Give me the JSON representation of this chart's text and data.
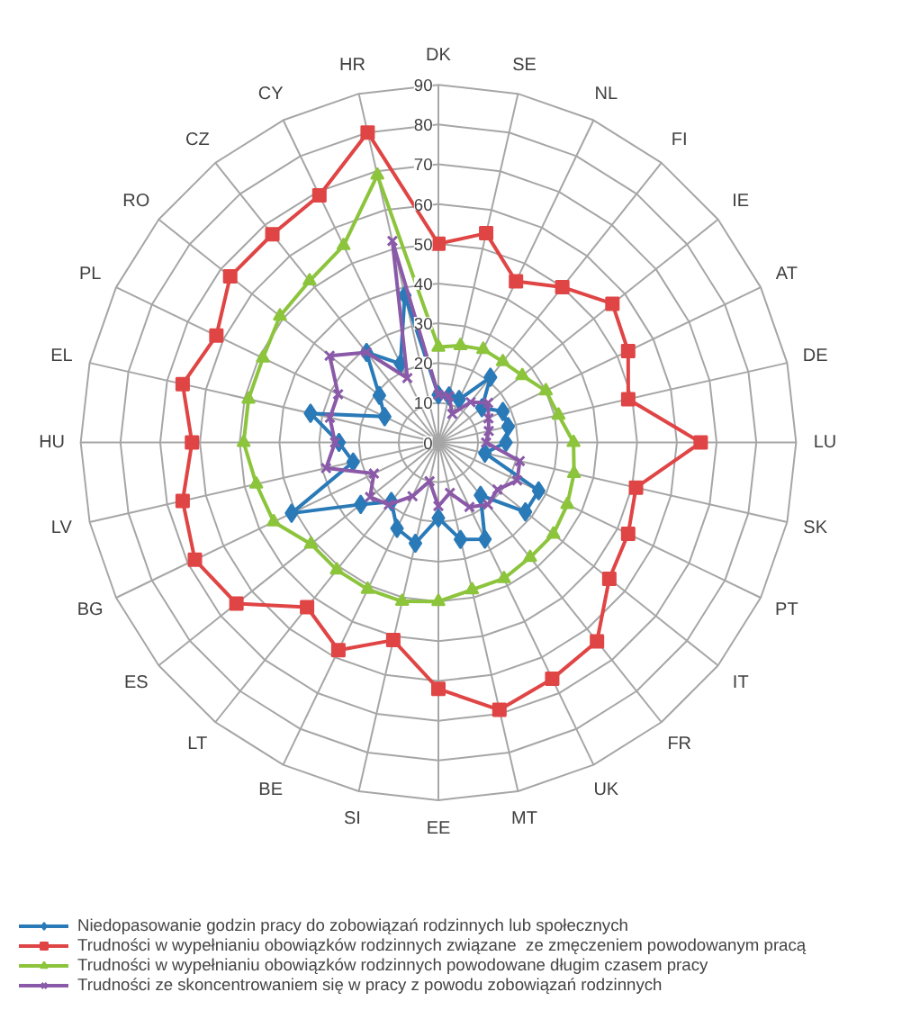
{
  "chart_data": {
    "type": "radar",
    "categories": [
      "DK",
      "SE",
      "NL",
      "FI",
      "IE",
      "AT",
      "DE",
      "LU",
      "SK",
      "PT",
      "IT",
      "FR",
      "UK",
      "MT",
      "EE",
      "SI",
      "BE",
      "LT",
      "ES",
      "BG",
      "LV",
      "HU",
      "EL",
      "PL",
      "RO",
      "CZ",
      "CY",
      "HR"
    ],
    "series": [
      {
        "name": "Niedopasowanie godzin pracy do zobowiązań rodzinnych lub społecznych",
        "color": "#2a7ab8",
        "marker": "diamond",
        "values": [
          12,
          12,
          12,
          21,
          14,
          18,
          18,
          17,
          12,
          28,
          28,
          17,
          27,
          25,
          19,
          26,
          24,
          19,
          25,
          41,
          22,
          25,
          33,
          15,
          19,
          29,
          22,
          38
        ]
      },
      {
        "name": "Trudności w wypełnianiu obowiązków rodzinnych związane  ze zmęczeniem powodowanym pracą",
        "color": "#e04545",
        "marker": "square",
        "values": [
          50,
          54,
          45,
          50,
          56,
          53,
          49,
          66,
          51,
          53,
          55,
          64,
          66,
          69,
          62,
          51,
          58,
          53,
          65,
          68,
          66,
          62,
          66,
          62,
          67,
          67,
          69,
          80
        ]
      },
      {
        "name": "Trudności w wypełnianiu obowiązków rodzinnych powodowane długim czasem pracy",
        "color": "#8cc43c",
        "marker": "triangle",
        "values": [
          24,
          25,
          26,
          26,
          27,
          30,
          31,
          34,
          35,
          36,
          37,
          37,
          38,
          38,
          40,
          41,
          41,
          41,
          41,
          46,
          47,
          49,
          49,
          49,
          51,
          52,
          55,
          69
        ]
      },
      {
        "name": "Trudności ze skoncentrowaniem się w pracy z powodu zobowiązań rodzinnych",
        "color": "#8a5aa8",
        "marker": "cross",
        "values": [
          12,
          12,
          8,
          13,
          16,
          14,
          13,
          12,
          21,
          22,
          19,
          20,
          18,
          13,
          16,
          10,
          15,
          20,
          22,
          18,
          29,
          26,
          28,
          28,
          35,
          29,
          18,
          52
        ]
      }
    ],
    "ylim": [
      0,
      90
    ],
    "yticks": [
      0,
      10,
      20,
      30,
      40,
      50,
      60,
      70,
      80,
      90
    ],
    "grid": true,
    "legend": "bottom"
  }
}
